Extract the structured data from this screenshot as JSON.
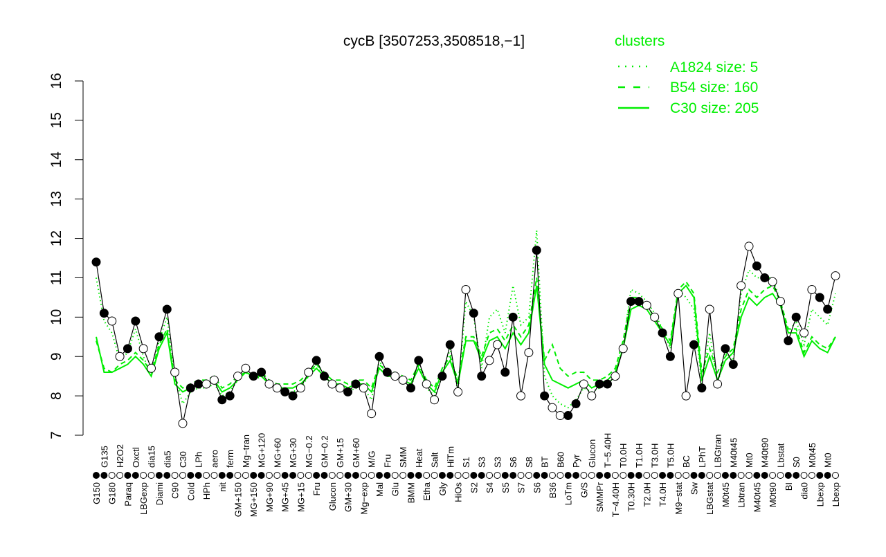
{
  "chart_data": {
    "type": "line",
    "title": "cycB [3507253,3508518,−1]",
    "xlabel": "",
    "ylabel": "",
    "ylim": [
      7,
      16
    ],
    "yticks": [
      7,
      8,
      9,
      10,
      11,
      12,
      13,
      14,
      15,
      16
    ],
    "grid": false,
    "legend": {
      "title": "clusters",
      "placement": "top-right",
      "color": "#00ee00",
      "entries": [
        {
          "label": "A1824 size: 5",
          "style": "dotted"
        },
        {
          "label": "B54 size: 160",
          "style": "dashed"
        },
        {
          "label": "C30 size: 205",
          "style": "solid"
        }
      ]
    },
    "categories": [
      "G150",
      "G135",
      "G180",
      "H2O2",
      "Paraq",
      "Oxctl",
      "LBGexp",
      "dia15",
      "Diami",
      "dia5",
      "C90",
      "C30",
      "Cold",
      "LPh",
      "HPh",
      "aero",
      "nit",
      "ferm",
      "GM+150",
      "Mg−tran",
      "MG+150",
      "MG+120",
      "MG+90",
      "MG+60",
      "MG+45",
      "MG+30",
      "MG+15",
      "MG−0.2",
      "Fru",
      "GM−0.2",
      "Glucon",
      "GM+15",
      "GM+30",
      "GM+60",
      "Mg−exp",
      "M/G",
      "Mal",
      "Fru",
      "Glu",
      "SMM",
      "BMM",
      "Heat",
      "Etha",
      "Salt",
      "Gly",
      "HiTm",
      "HiOs",
      "S1",
      "S2",
      "S3",
      "S4",
      "S3",
      "S5",
      "S6",
      "S7",
      "S8",
      "S6",
      "BT",
      "B36",
      "B60",
      "LoTm",
      "Pyr",
      "G/S",
      "Glucon",
      "SMMPr",
      "T−5.40H",
      "T−4.40H",
      "T0.0H",
      "T0.30H",
      "T1.0H",
      "T2.0H",
      "T3.0H",
      "T4.0H",
      "T5.0H",
      "M9−stat",
      "BC",
      "Sw",
      "LPhT",
      "LBGstat",
      "LBGtran",
      "M0t45",
      "M40t45",
      "Lbtran",
      "Mt0",
      "M40t45",
      "M40t90",
      "M0t90",
      "Lbstat",
      "BI",
      "S0",
      "dia0",
      "M0t45",
      "Lbexp",
      "Mt0",
      "Lbexp"
    ],
    "values": [
      11.4,
      10.1,
      9.9,
      9.0,
      9.2,
      9.9,
      9.2,
      8.7,
      9.5,
      10.2,
      8.6,
      7.3,
      8.2,
      8.3,
      8.3,
      8.4,
      7.9,
      8.0,
      8.5,
      8.7,
      8.5,
      8.6,
      8.3,
      8.2,
      8.1,
      8.0,
      8.2,
      8.6,
      8.9,
      8.5,
      8.3,
      8.2,
      8.1,
      8.3,
      8.2,
      7.55,
      9.0,
      8.6,
      8.5,
      8.4,
      8.2,
      8.9,
      8.3,
      7.9,
      8.5,
      9.3,
      8.1,
      10.7,
      10.1,
      8.5,
      8.9,
      9.3,
      8.6,
      10.0,
      8.0,
      9.1,
      11.7,
      8.0,
      7.7,
      7.5,
      7.5,
      7.8,
      8.3,
      8.0,
      8.3,
      8.3,
      8.5,
      9.2,
      10.4,
      10.4,
      10.3,
      10.0,
      9.6,
      9.0,
      10.6,
      8.0,
      9.3,
      8.2,
      10.2,
      8.3,
      9.2,
      8.8,
      10.8,
      11.8,
      11.3,
      11.0,
      10.9,
      10.4,
      9.4,
      10.0,
      9.6,
      10.7,
      10.5,
      10.2,
      11.05
    ],
    "series": [
      {
        "name": "C30 size: 205",
        "style": "solid",
        "values": [
          9.5,
          8.6,
          8.6,
          8.7,
          8.8,
          9.0,
          8.8,
          8.5,
          9.2,
          9.6,
          8.3,
          8.1,
          8.2,
          8.3,
          8.3,
          8.4,
          8.1,
          8.2,
          8.4,
          8.6,
          8.5,
          8.5,
          8.3,
          8.2,
          8.2,
          8.2,
          8.3,
          8.5,
          8.7,
          8.5,
          8.3,
          8.3,
          8.2,
          8.3,
          8.3,
          8.1,
          8.7,
          8.5,
          8.5,
          8.4,
          8.3,
          8.7,
          8.3,
          8.1,
          8.6,
          8.9,
          8.3,
          9.4,
          9.4,
          8.9,
          9.4,
          9.5,
          9.2,
          9.6,
          9.3,
          9.6,
          10.8,
          8.8,
          8.4,
          8.3,
          8.2,
          8.3,
          8.4,
          8.2,
          8.3,
          8.4,
          8.6,
          9.2,
          10.2,
          10.3,
          10.2,
          9.9,
          9.6,
          9.3,
          10.6,
          10.8,
          10.5,
          8.4,
          9.0,
          8.4,
          8.9,
          9.1,
          10.0,
          10.5,
          10.3,
          10.5,
          10.6,
          10.3,
          9.6,
          9.6,
          9.0,
          9.4,
          9.2,
          9.1,
          9.5
        ]
      },
      {
        "name": "B54 size: 160",
        "style": "dashed",
        "values": [
          9.4,
          8.7,
          8.6,
          8.8,
          8.9,
          9.1,
          8.9,
          8.6,
          9.3,
          9.7,
          8.4,
          8.2,
          8.3,
          8.4,
          8.4,
          8.5,
          8.2,
          8.3,
          8.5,
          8.6,
          8.5,
          8.6,
          8.4,
          8.3,
          8.3,
          8.3,
          8.4,
          8.6,
          8.8,
          8.6,
          8.4,
          8.4,
          8.3,
          8.4,
          8.4,
          8.2,
          8.8,
          8.6,
          8.6,
          8.5,
          8.4,
          8.8,
          8.4,
          8.2,
          8.7,
          9.0,
          8.4,
          9.5,
          9.5,
          9.0,
          9.6,
          9.7,
          9.4,
          9.8,
          9.5,
          9.8,
          11.0,
          8.9,
          9.3,
          8.7,
          8.5,
          8.6,
          8.6,
          8.4,
          8.4,
          8.5,
          8.7,
          9.4,
          10.5,
          10.5,
          10.3,
          10.0,
          9.7,
          9.4,
          10.7,
          10.9,
          10.6,
          8.6,
          9.2,
          8.6,
          9.0,
          9.2,
          10.2,
          10.7,
          10.5,
          10.7,
          10.8,
          10.4,
          9.7,
          9.7,
          9.1,
          9.5,
          9.3,
          9.2,
          9.5
        ]
      },
      {
        "name": "A1824 size: 5",
        "style": "dotted",
        "values": [
          11.0,
          9.9,
          9.6,
          8.9,
          9.1,
          9.7,
          9.0,
          8.5,
          9.4,
          10.0,
          8.5,
          7.8,
          8.1,
          8.2,
          8.2,
          8.3,
          8.0,
          8.1,
          8.4,
          8.6,
          8.4,
          8.5,
          8.3,
          8.2,
          8.1,
          8.1,
          8.2,
          8.5,
          8.8,
          8.5,
          8.3,
          8.2,
          8.1,
          8.2,
          8.2,
          7.9,
          8.9,
          8.5,
          8.5,
          8.4,
          8.2,
          8.8,
          8.2,
          8.0,
          8.5,
          9.2,
          8.1,
          10.4,
          10.0,
          8.7,
          10.0,
          10.2,
          9.6,
          10.8,
          9.8,
          10.0,
          12.2,
          8.5,
          8.0,
          7.8,
          7.7,
          7.9,
          8.2,
          8.1,
          8.2,
          8.3,
          8.5,
          9.3,
          10.7,
          10.6,
          10.4,
          10.1,
          9.7,
          9.2,
          10.7,
          10.5,
          10.2,
          8.3,
          9.6,
          8.3,
          9.1,
          8.9,
          10.6,
          11.2,
          11.0,
          11.0,
          11.0,
          10.4,
          9.6,
          9.9,
          9.3,
          10.2,
          10.0,
          9.8,
          10.6
        ]
      }
    ]
  }
}
